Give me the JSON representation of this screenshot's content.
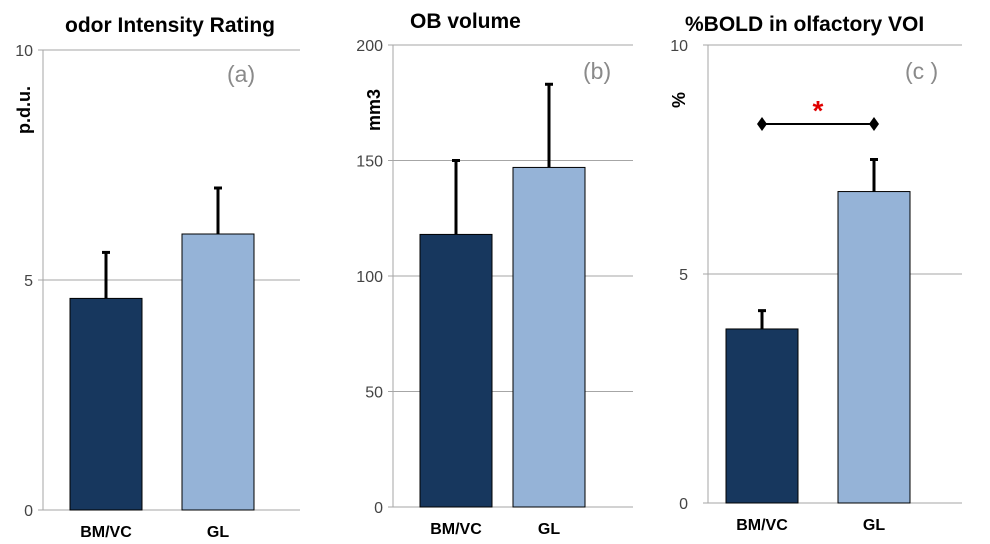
{
  "colors": {
    "dark": "#17375e",
    "light": "#95b3d7",
    "grid": "#a6a6a6",
    "error": "#000000",
    "star": "#e00000"
  },
  "chart_data": [
    {
      "type": "bar",
      "title": "odor  Intensity Rating",
      "panel_label": "(a)",
      "ylabel": "p.d.u.",
      "xlabel": "",
      "categories": [
        "BM/VC",
        "GL"
      ],
      "values": [
        4.6,
        6.0
      ],
      "errors": [
        1.0,
        1.0
      ],
      "ylim": [
        0,
        10
      ],
      "yticks": [
        0,
        5,
        10
      ],
      "grid": true
    },
    {
      "type": "bar",
      "title": "OB volume",
      "panel_label": "(b)",
      "ylabel": "mm3",
      "xlabel": "",
      "categories": [
        "BM/VC",
        "GL"
      ],
      "values": [
        118,
        147
      ],
      "errors": [
        32,
        36
      ],
      "ylim": [
        0,
        200
      ],
      "yticks": [
        0,
        50,
        100,
        150,
        200
      ],
      "grid": true
    },
    {
      "type": "bar",
      "title": "%BOLD in olfactory VOI",
      "panel_label": "(c )",
      "ylabel": "%",
      "xlabel": "",
      "categories": [
        "BM/VC",
        "GL"
      ],
      "values": [
        3.8,
        6.8
      ],
      "errors": [
        0.4,
        0.7
      ],
      "ylim": [
        0,
        10
      ],
      "yticks": [
        0,
        5,
        10
      ],
      "grid": true,
      "significance": {
        "label": "*",
        "between": [
          "BM/VC",
          "GL"
        ]
      }
    }
  ]
}
